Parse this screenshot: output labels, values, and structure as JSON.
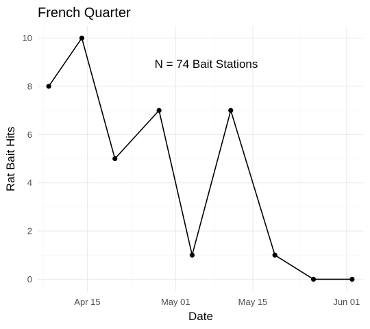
{
  "chart_data": {
    "type": "line",
    "title": "French Quarter",
    "xlabel": "Date",
    "ylabel": "Rat Bait Hits",
    "annotation": "N = 74 Bait Stations",
    "x": [
      "2021-04-08",
      "2021-04-14",
      "2021-04-20",
      "2021-04-28",
      "2021-05-04",
      "2021-05-11",
      "2021-05-19",
      "2021-05-26",
      "2021-06-02"
    ],
    "values": [
      8,
      10,
      5,
      7,
      1,
      7,
      1,
      0,
      0
    ],
    "x_ticks": [
      {
        "date": "2021-04-15",
        "label": "Apr 15"
      },
      {
        "date": "2021-05-01",
        "label": "May 01"
      },
      {
        "date": "2021-05-15",
        "label": "May 15"
      },
      {
        "date": "2021-06-01",
        "label": "Jun 01"
      }
    ],
    "xlim": [
      "2021-04-06",
      "2021-06-04"
    ],
    "y_ticks": [
      0,
      2,
      4,
      6,
      8,
      10
    ],
    "ylim": [
      -0.5,
      10.5
    ],
    "grid": true
  }
}
